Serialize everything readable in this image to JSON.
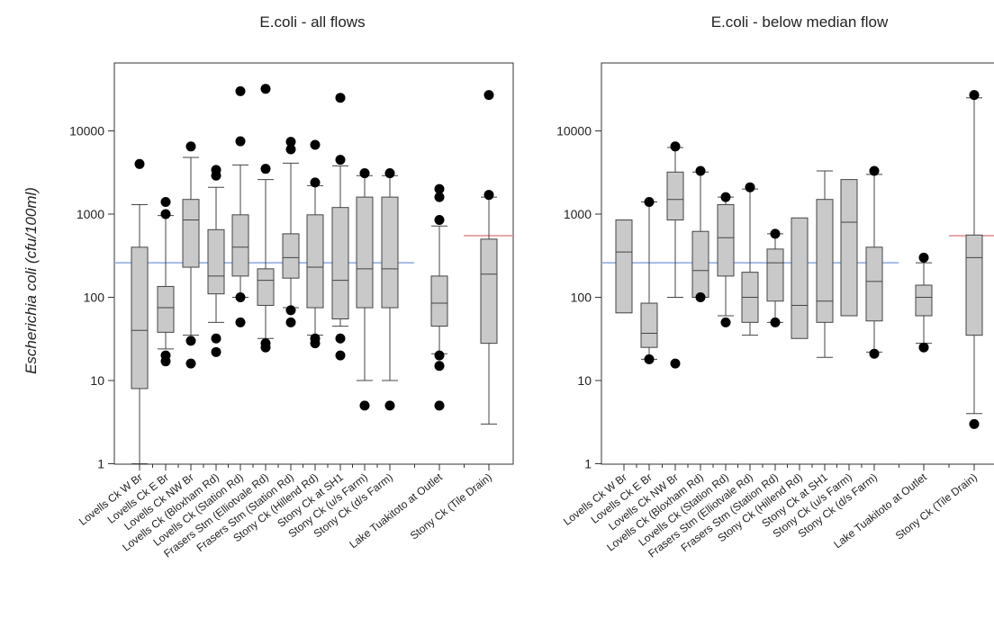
{
  "figure": {
    "ylabel": "Escherichia coli (cfu/100ml)"
  },
  "chart_data": [
    {
      "type": "box",
      "title": "E.coli - all flows",
      "ylabel": "Escherichia coli (cfu/100ml)",
      "yscale": "log",
      "ylim": [
        1,
        80000
      ],
      "yticks": [
        "1",
        "10",
        "100",
        "1000",
        "10000"
      ],
      "reference_lines": [
        {
          "color": "#8aa8e0",
          "value": 260,
          "span": "lovells-stony"
        },
        {
          "color": "#e08a8a",
          "value": 550,
          "span": "tile-drain"
        }
      ],
      "categories": [
        "Lovells Ck W Br",
        "Lovells Ck E Br",
        "Lovells Ck NW Br",
        "Lovells Ck (Bloxham Rd)",
        "Lovells Ck (Station Rd)",
        "Frasers Stm (Elliotvale Rd)",
        "Frasers Stm (Station Rd)",
        "Stony Ck (Hillend Rd)",
        "Stony Ck at SH1",
        "Stony Ck (u/s Farm)",
        "Stony Ck (d/s Farm)",
        "Lake Tuakitoto at Outlet",
        "Stony Ck (Tile Drain)"
      ],
      "boxes": [
        {
          "q1": 8,
          "median": 40,
          "q3": 400,
          "whisker_low": 1,
          "whisker_high": 1300,
          "outliers": [
            4000
          ]
        },
        {
          "q1": 38,
          "median": 75,
          "q3": 135,
          "whisker_low": 24,
          "whisker_high": 960,
          "outliers": [
            17,
            20,
            1000,
            1400
          ]
        },
        {
          "q1": 230,
          "median": 850,
          "q3": 1500,
          "whisker_low": 35,
          "whisker_high": 4800,
          "outliers": [
            16,
            30,
            6500
          ]
        },
        {
          "q1": 110,
          "median": 180,
          "q3": 650,
          "whisker_low": 50,
          "whisker_high": 2100,
          "outliers": [
            22,
            32,
            2900,
            3400
          ]
        },
        {
          "q1": 180,
          "median": 400,
          "q3": 980,
          "whisker_low": 100,
          "whisker_high": 3900,
          "outliers": [
            50,
            100,
            7500,
            30000
          ]
        },
        {
          "q1": 80,
          "median": 160,
          "q3": 220,
          "whisker_low": 32,
          "whisker_high": 2600,
          "outliers": [
            25,
            28,
            3500,
            32000
          ]
        },
        {
          "q1": 170,
          "median": 300,
          "q3": 580,
          "whisker_low": 75,
          "whisker_high": 4100,
          "outliers": [
            50,
            70,
            6000,
            7400
          ]
        },
        {
          "q1": 75,
          "median": 230,
          "q3": 980,
          "whisker_low": 35,
          "whisker_high": 2200,
          "outliers": [
            28,
            32,
            2400,
            6800
          ]
        },
        {
          "q1": 55,
          "median": 160,
          "q3": 1200,
          "whisker_low": 45,
          "whisker_high": 3800,
          "outliers": [
            20,
            32,
            4500,
            25000
          ]
        },
        {
          "q1": 75,
          "median": 220,
          "q3": 1600,
          "whisker_low": 10,
          "whisker_high": 2900,
          "outliers": [
            5,
            3100
          ]
        },
        {
          "q1": 75,
          "median": 220,
          "q3": 1600,
          "whisker_low": 10,
          "whisker_high": 2900,
          "outliers": [
            5,
            3100
          ]
        },
        {
          "q1": 45,
          "median": 85,
          "q3": 180,
          "whisker_low": 21,
          "whisker_high": 720,
          "outliers": [
            5,
            15,
            20,
            850,
            1600,
            2000
          ]
        },
        {
          "q1": 28,
          "median": 190,
          "q3": 500,
          "whisker_low": 3,
          "whisker_high": 1600,
          "outliers": [
            1700,
            27000
          ]
        }
      ]
    },
    {
      "type": "box",
      "title": "E.coli - below median flow",
      "yscale": "log",
      "ylim": [
        1,
        80000
      ],
      "yticks": [
        "1",
        "10",
        "100",
        "1000",
        "10000"
      ],
      "reference_lines": [
        {
          "color": "#8aa8e0",
          "value": 260,
          "span": "lovells-stony"
        },
        {
          "color": "#e08a8a",
          "value": 550,
          "span": "tile-drain"
        }
      ],
      "categories": [
        "Lovells Ck W Br",
        "Lovells Ck E Br",
        "Lovells Ck NW Br",
        "Lovells Ck (Bloxham Rd)",
        "Lovells Ck (Station Rd)",
        "Frasers Stm (Elliotvale Rd)",
        "Frasers Stm (Station Rd)",
        "Stony Ck (Hillend Rd)",
        "Stony Ck at SH1",
        "Stony Ck (u/s Farm)",
        "Stony Ck (d/s Farm)",
        "Lake Tuakitoto at Outlet",
        "Stony Ck (Tile Drain)"
      ],
      "boxes": [
        {
          "q1": 65,
          "median": 350,
          "q3": 850,
          "whisker_low": null,
          "whisker_high": null,
          "outliers": []
        },
        {
          "q1": 25,
          "median": 37,
          "q3": 85,
          "whisker_low": 18,
          "whisker_high": 1400,
          "outliers": [
            18,
            1400
          ]
        },
        {
          "q1": 850,
          "median": 1500,
          "q3": 3200,
          "whisker_low": 100,
          "whisker_high": 6300,
          "outliers": [
            16,
            6500
          ]
        },
        {
          "q1": 100,
          "median": 210,
          "q3": 620,
          "whisker_low": 100,
          "whisker_high": 3200,
          "outliers": [
            100,
            3300
          ]
        },
        {
          "q1": 180,
          "median": 520,
          "q3": 1300,
          "whisker_low": 60,
          "whisker_high": 1600,
          "outliers": [
            50,
            1600
          ]
        },
        {
          "q1": 50,
          "median": 100,
          "q3": 200,
          "whisker_low": 35,
          "whisker_high": 2000,
          "outliers": [
            2100
          ]
        },
        {
          "q1": 90,
          "median": 260,
          "q3": 380,
          "whisker_low": 50,
          "whisker_high": 580,
          "outliers": [
            50,
            580
          ]
        },
        {
          "q1": 32,
          "median": 80,
          "q3": 900,
          "whisker_low": null,
          "whisker_high": null,
          "outliers": []
        },
        {
          "q1": 50,
          "median": 90,
          "q3": 1500,
          "whisker_low": 19,
          "whisker_high": 3300,
          "outliers": []
        },
        {
          "q1": 60,
          "median": 800,
          "q3": 2600,
          "whisker_low": null,
          "whisker_high": null,
          "outliers": []
        },
        {
          "q1": 52,
          "median": 155,
          "q3": 400,
          "whisker_low": 22,
          "whisker_high": 3000,
          "outliers": [
            21,
            3300
          ]
        },
        {
          "q1": 60,
          "median": 100,
          "q3": 140,
          "whisker_low": 28,
          "whisker_high": 260,
          "outliers": [
            25,
            300
          ]
        },
        {
          "q1": 35,
          "median": 300,
          "q3": 560,
          "whisker_low": 4,
          "whisker_high": 25000,
          "outliers": [
            3,
            27000
          ]
        }
      ]
    }
  ]
}
